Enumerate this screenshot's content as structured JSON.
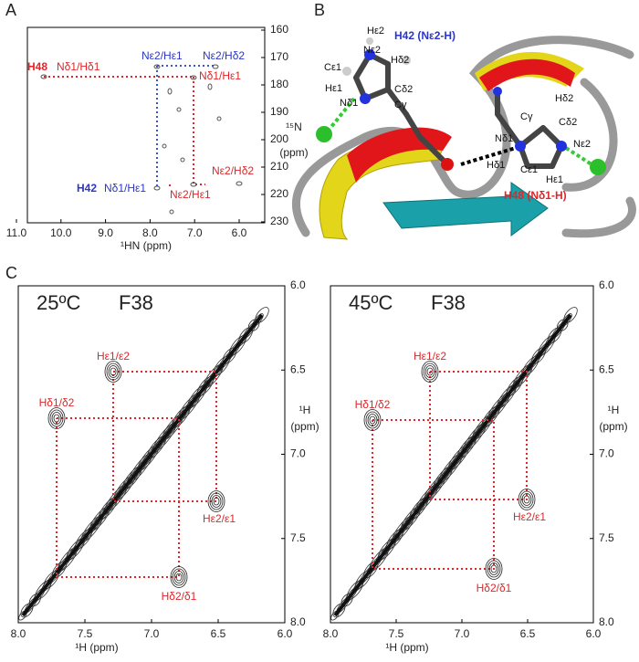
{
  "panels": [
    {
      "letter": "A",
      "x_ticks": [
        "11.0",
        "10.0",
        "9.0",
        "8.0",
        "7.0",
        "6.0"
      ],
      "y_ticks": [
        "160",
        "170",
        "180",
        "190",
        "200",
        "210",
        "220",
        "230"
      ],
      "x_label": "¹HN (ppm)",
      "y_label": [
        "¹⁵N",
        "(ppm)"
      ],
      "annotations": [
        "H48",
        "Nδ1/Hδ1",
        "Nε2/Hε1",
        "Nε2/Hδ2",
        "Nδ1/Hε1",
        "Nε2/Hδ2",
        "H42",
        "Nδ1/Hε1",
        "Nε2/Hε1"
      ]
    },
    {
      "letter": "B",
      "titles": [
        "H42 (Nε2-H)",
        "H48 (Nδ1-H)"
      ],
      "atoms": [
        "Hε2",
        "Nε2",
        "Cε1",
        "Hδ2",
        "Hε1",
        "Cδ2",
        "Nδ1",
        "Cγ",
        "Cγ",
        "Hδ2",
        "Cδ2",
        "Nδ1",
        "Nε2",
        "Hδ1",
        "Cε1",
        "Hε1"
      ]
    },
    {
      "letter": "C",
      "spectra": [
        {
          "temperature": "25ºC",
          "residue": "F38",
          "x_ticks": [
            "8.0",
            "7.5",
            "7.0",
            "6.5",
            "6.0"
          ],
          "y_ticks": [
            "6.0",
            "6.5",
            "7.0",
            "7.5",
            "8.0"
          ],
          "x_label": "¹H (ppm)",
          "y_label": [
            "¹H",
            "(ppm)"
          ],
          "peaks": [
            "Hε1/ε2",
            "Hδ1/δ2",
            "Hε2/ε1",
            "Hδ2/δ1"
          ]
        },
        {
          "temperature": "45ºC",
          "residue": "F38",
          "x_ticks": [
            "8.0",
            "7.5",
            "7.0",
            "6.5",
            "6.0"
          ],
          "y_ticks": [
            "6.0",
            "6.5",
            "7.0",
            "7.5",
            "8.0"
          ],
          "x_label": "¹H (ppm)",
          "y_label": [
            "¹H",
            "(ppm)"
          ],
          "peaks": [
            "Hε1/ε2",
            "Hδ1/δ2",
            "Hε2/ε1",
            "Hδ2/δ1"
          ]
        }
      ]
    }
  ]
}
